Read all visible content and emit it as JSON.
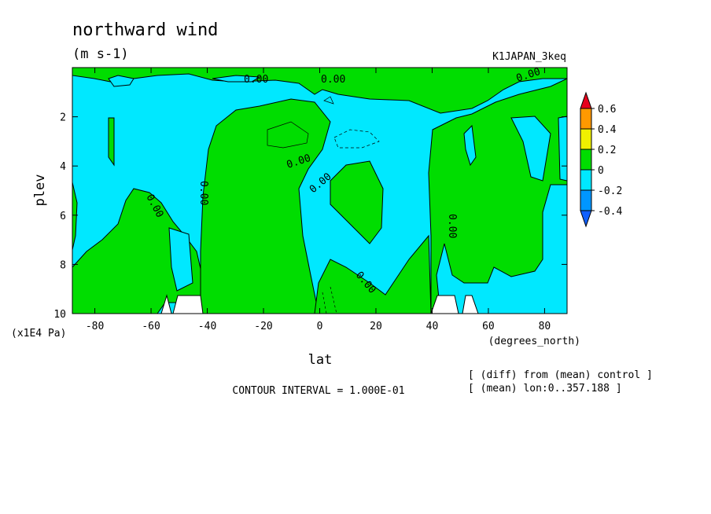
{
  "chart_data": {
    "type": "heatmap",
    "title": "northward wind",
    "units": "(m s-1)",
    "dataset": "K1JAPAN_3keq",
    "xlabel": "lat",
    "x_units": "(degrees_north)",
    "ylabel": "plev",
    "y_units": "(x1E4 Pa)",
    "xlim": [
      -88,
      88
    ],
    "ylim": [
      0,
      10
    ],
    "x_ticks": [
      -80,
      -60,
      -40,
      -20,
      0,
      20,
      40,
      60,
      80
    ],
    "x_tick_labels": [
      "-80",
      "-60",
      "-40",
      "-20",
      "0",
      "20",
      "40",
      "60",
      "80"
    ],
    "y_ticks": [
      2,
      4,
      6,
      8,
      10
    ],
    "y_tick_labels": [
      "2",
      "4",
      "6",
      "8",
      "10"
    ],
    "colorbar": {
      "labels": [
        "0.6",
        "0.4",
        "0.2",
        "0",
        "-0.2",
        "-0.4"
      ],
      "colors": [
        "#e8001c",
        "#ff9900",
        "#f0f000",
        "#00dd00",
        "#00e8ff",
        "#0096ff",
        "#1060ff"
      ]
    },
    "contour_label": "0.00",
    "footer_interval": "CONTOUR INTERVAL = 1.000E-01",
    "notes": [
      "[ (diff) from (mean) control ]",
      "[ (mean) lon:0..357.188 ]"
    ]
  }
}
